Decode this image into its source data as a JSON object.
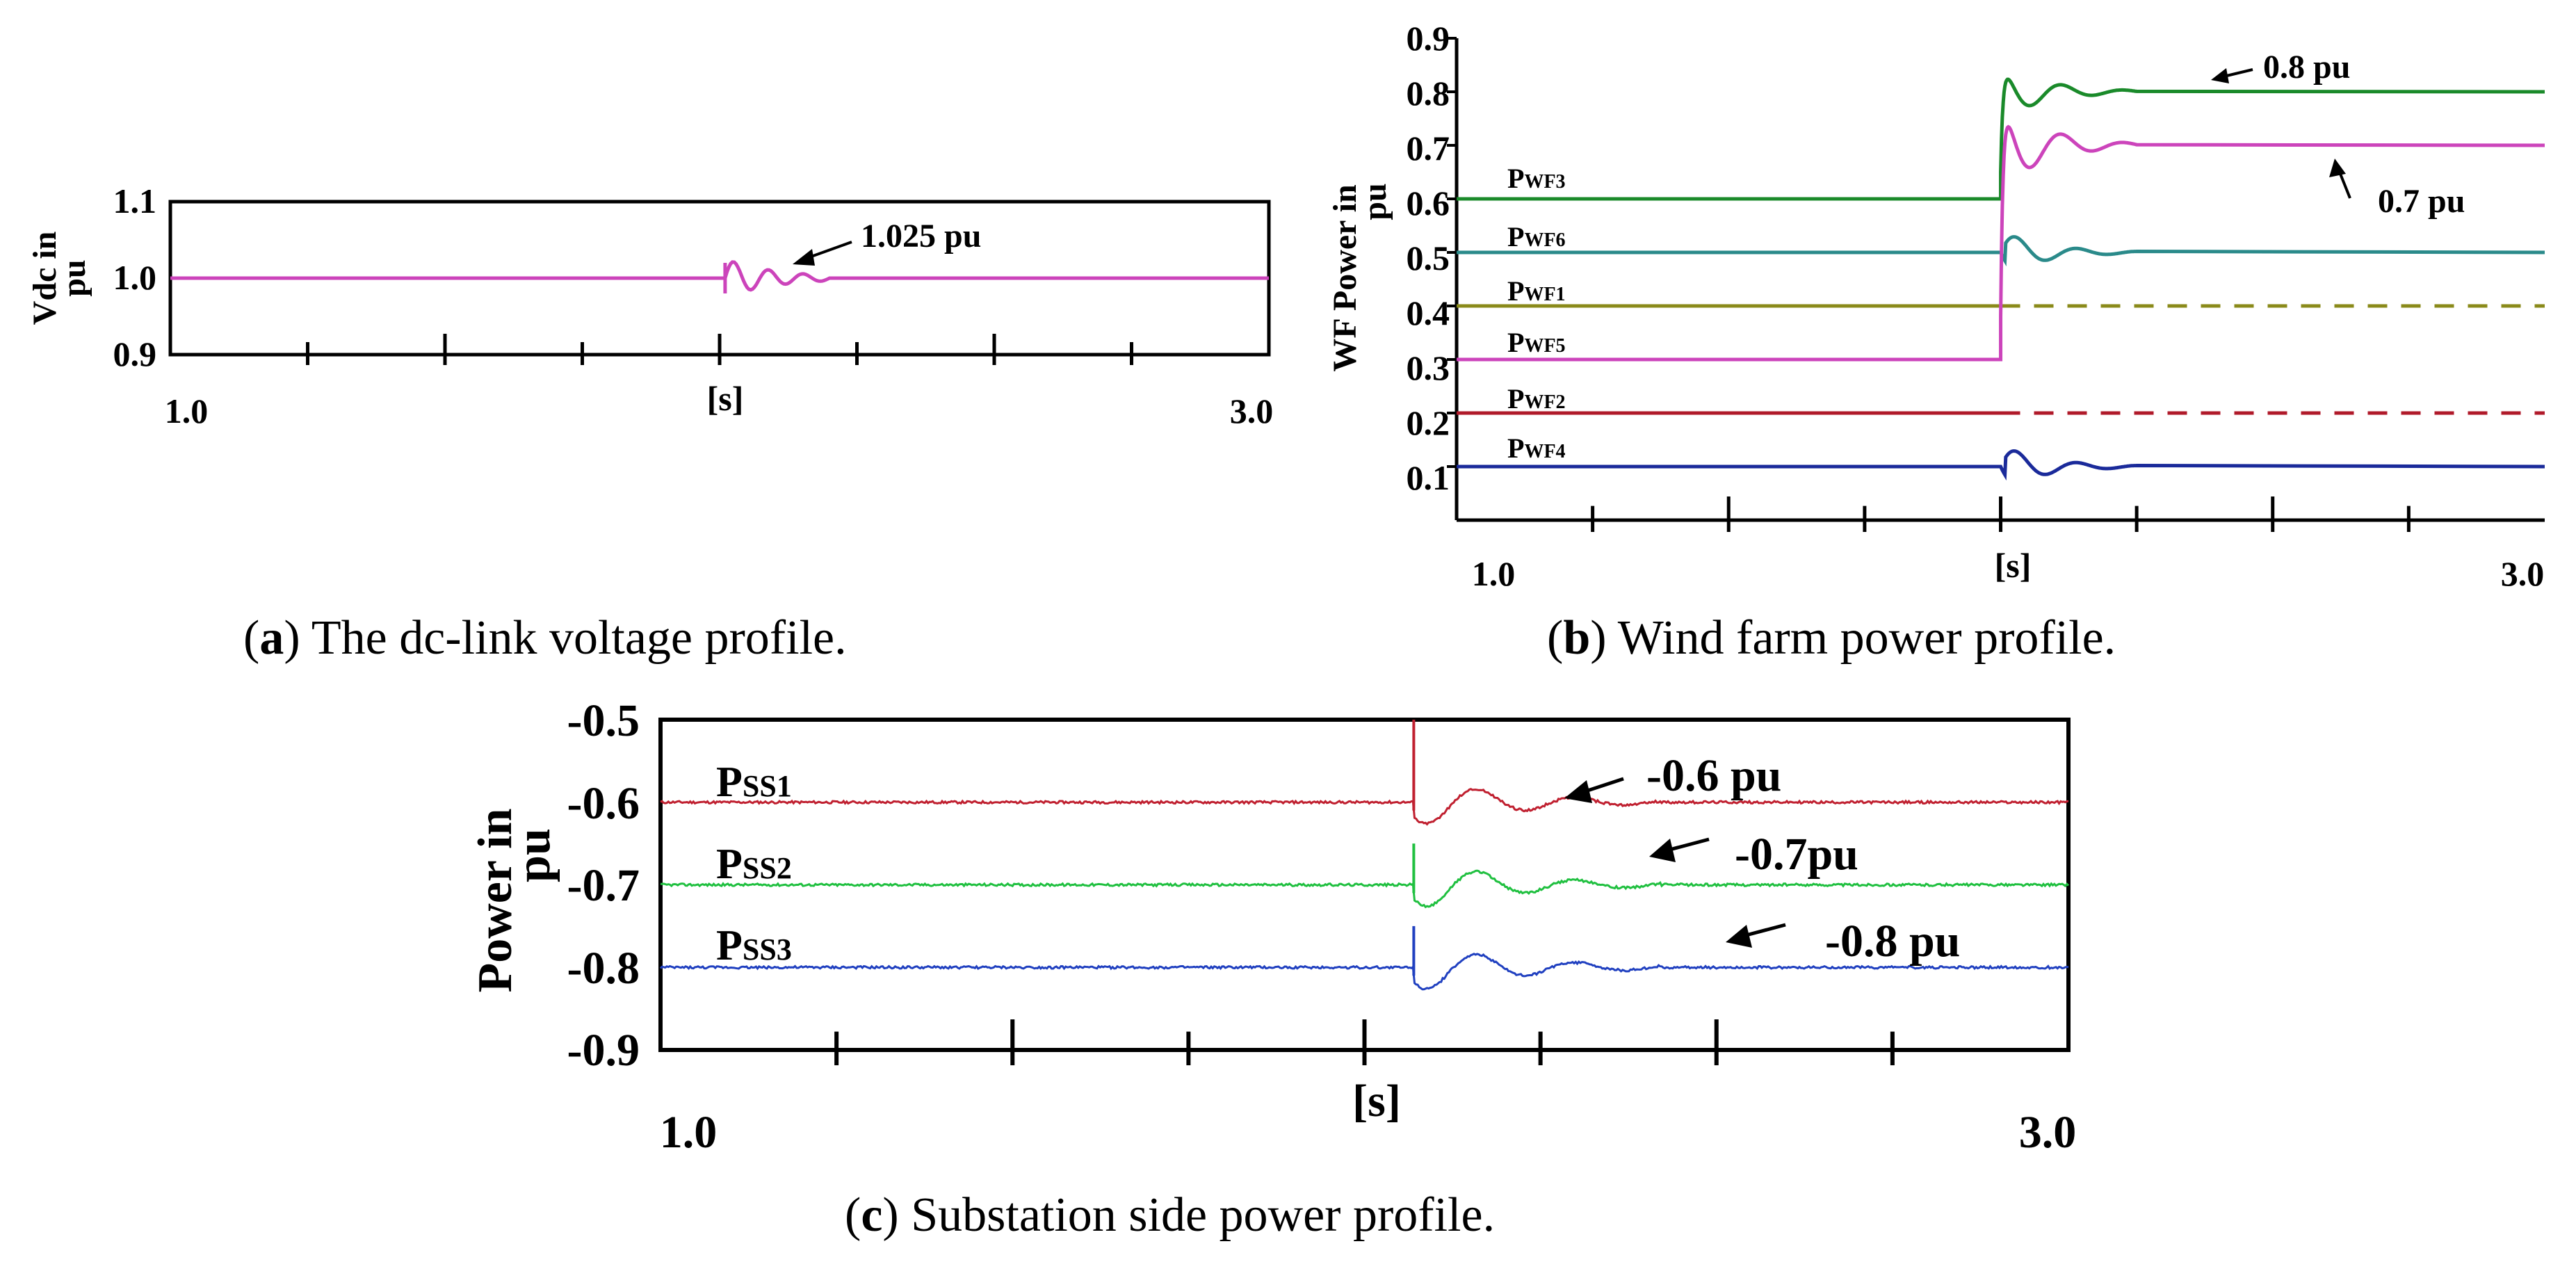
{
  "chart_data": [
    {
      "id": "a",
      "type": "line",
      "caption_label": "a",
      "caption_text": " The dc-link voltage profile.",
      "ylabel_line1": "Vdc in",
      "ylabel_line2": "pu",
      "xlabel": "[s]",
      "xlim": [
        1.0,
        3.0
      ],
      "ylim": [
        0.9,
        1.1
      ],
      "x_ticks": [
        "1.0",
        "3.0"
      ],
      "y_ticks": [
        "1.1",
        "1.0",
        "0.9"
      ],
      "series": [
        {
          "name": "Vdc",
          "color": "#cc44bb",
          "steady": 1.0,
          "event_x": 2.01,
          "osc_amp": 0.025,
          "osc_end_x": 2.2,
          "noise": 0
        }
      ],
      "annotations": [
        {
          "text": "1.025 pu",
          "arrow_to": [
            2.13,
            1.02
          ]
        }
      ]
    },
    {
      "id": "b",
      "type": "line",
      "caption_label": "b",
      "caption_text": " Wind farm power profile.",
      "ylabel_line1": "WF  Power in",
      "ylabel_line2": "pu",
      "xlabel": "[s]",
      "xlim": [
        1.0,
        3.0
      ],
      "ylim": [
        0.0,
        0.9
      ],
      "x_ticks": [
        "1.0",
        "3.0"
      ],
      "y_ticks": [
        "0.9",
        "0.8",
        "0.7",
        "0.6",
        "0.5",
        "0.4",
        "0.3",
        "0.2",
        "0.1"
      ],
      "series": [
        {
          "name_main": "P",
          "name_sub": "WF3",
          "color": "#1a8a2a",
          "before": 0.6,
          "after": 0.8,
          "dashed": false,
          "overshoot": 0.03
        },
        {
          "name_main": "P",
          "name_sub": "WF6",
          "color": "#2a8a8a",
          "before": 0.5,
          "after": 0.5,
          "dashed": false,
          "overshoot": 0.04
        },
        {
          "name_main": "P",
          "name_sub": "WF1",
          "color": "#8a8a1a",
          "before": 0.4,
          "after": 0.4,
          "dashed": true,
          "overshoot": 0
        },
        {
          "name_main": "P",
          "name_sub": "WF5",
          "color": "#cc44bb",
          "before": 0.3,
          "after": 0.7,
          "dashed": false,
          "overshoot": 0.06
        },
        {
          "name_main": "P",
          "name_sub": "WF2",
          "color": "#b01a2a",
          "before": 0.2,
          "after": 0.2,
          "dashed": true,
          "overshoot": 0
        },
        {
          "name_main": "P",
          "name_sub": "WF4",
          "color": "#1a2a9a",
          "before": 0.1,
          "after": 0.1,
          "dashed": false,
          "overshoot": 0.04
        }
      ],
      "event_x": 2.0,
      "annotations": [
        {
          "text": "0.8 pu",
          "arrow_to": [
            2.5,
            0.82
          ]
        },
        {
          "text": "0.7 pu",
          "arrow_to": [
            2.6,
            0.7
          ]
        }
      ]
    },
    {
      "id": "c",
      "type": "line",
      "caption_label": "c",
      "caption_text": " Substation side power profile.",
      "ylabel_line1": "Power in",
      "ylabel_line2": "pu",
      "xlabel": "[s]",
      "xlim": [
        1.0,
        3.0
      ],
      "ylim": [
        -0.9,
        -0.5
      ],
      "x_ticks": [
        "1.0",
        "3.0"
      ],
      "y_ticks": [
        "-0.5",
        "-0.6",
        "-0.7",
        "-0.8",
        "-0.9"
      ],
      "series": [
        {
          "name_main": "P",
          "name_sub": "SS1",
          "color": "#c02030",
          "steady": -0.6,
          "spike": 0.1,
          "dip": -0.03,
          "noise": 0.003
        },
        {
          "name_main": "P",
          "name_sub": "SS2",
          "color": "#20c040",
          "steady": -0.7,
          "spike": 0.05,
          "dip": -0.03,
          "noise": 0.003
        },
        {
          "name_main": "P",
          "name_sub": "SS3",
          "color": "#2040c0",
          "steady": -0.8,
          "spike": 0.05,
          "dip": -0.03,
          "noise": 0.003
        }
      ],
      "event_x": 2.07,
      "annotations": [
        {
          "text": "-0.6 pu",
          "arrow_to": [
            2.27,
            -0.615
          ]
        },
        {
          "text": "-0.7pu",
          "arrow_to": [
            2.4,
            -0.715
          ]
        },
        {
          "text": "-0.8 pu",
          "arrow_to": [
            2.55,
            -0.815
          ]
        }
      ]
    }
  ]
}
